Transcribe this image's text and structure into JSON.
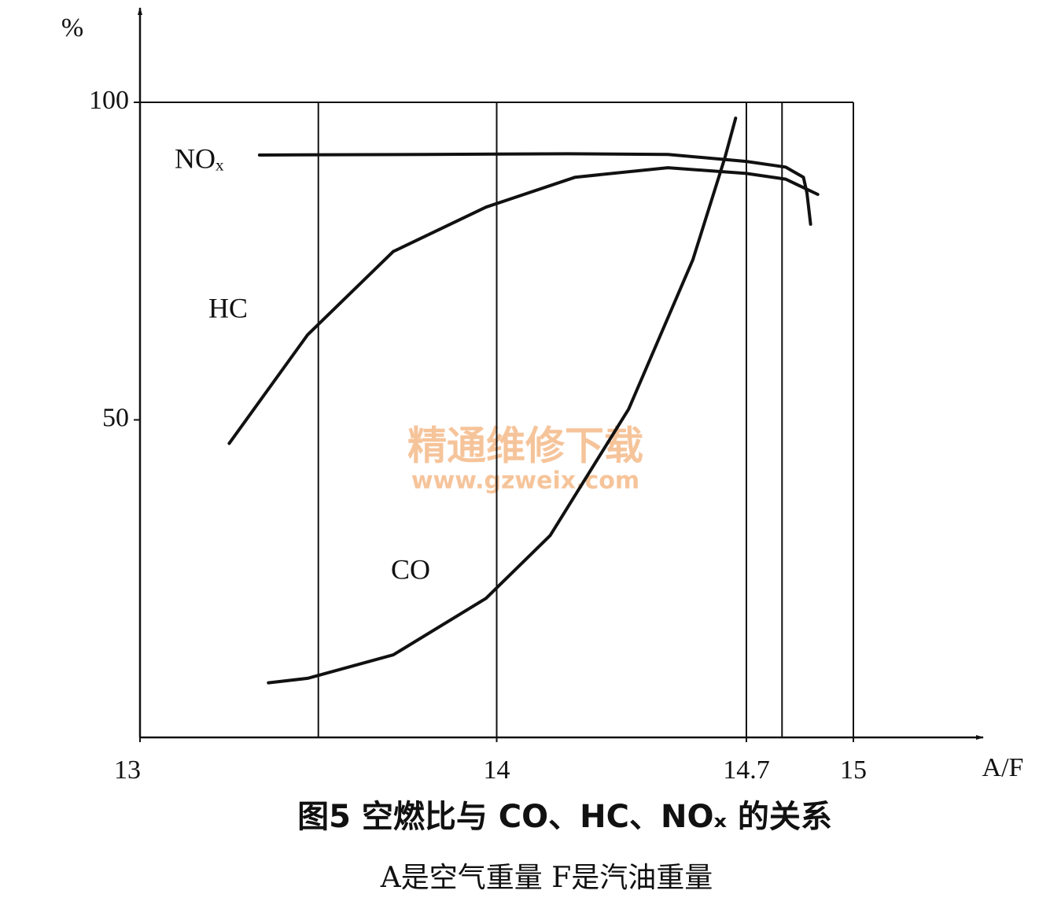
{
  "chart_data": {
    "type": "line",
    "title": "图5  空燃比与 CO、HC、NOₓ 的关系",
    "subtitle": "A是空气重量  F是汽油重量",
    "y_label": "%",
    "x_label": "A/F",
    "xlim": [
      13,
      15
    ],
    "ylim": [
      0,
      100
    ],
    "xticks": [
      13,
      14,
      14.7,
      15
    ],
    "yticks": [
      50,
      100
    ],
    "xgrid": [
      13.5,
      14,
      14.7,
      14.8,
      15
    ],
    "series": [
      {
        "name": "NOₓ",
        "color": "#111111",
        "x": [
          13.335,
          13.8,
          14.2,
          14.48,
          14.7,
          14.81,
          14.86,
          14.87,
          14.88
        ],
        "values": [
          91.7,
          91.8,
          91.9,
          91.8,
          90.7,
          89.8,
          88.2,
          85.7,
          80.8
        ]
      },
      {
        "name": "HC",
        "color": "#111111",
        "x": [
          13.25,
          13.47,
          13.71,
          13.97,
          14.22,
          14.48,
          14.7,
          14.81,
          14.9
        ],
        "values": [
          46.3,
          63.4,
          76.5,
          83.5,
          88.2,
          89.7,
          88.8,
          87.9,
          85.5
        ]
      },
      {
        "name": "CO",
        "color": "#111111",
        "x": [
          13.36,
          13.47,
          13.71,
          13.97,
          14.15,
          14.37,
          14.55,
          14.64,
          14.67
        ],
        "values": [
          8.6,
          9.3,
          13.0,
          21.9,
          31.8,
          51.7,
          75.2,
          91.3,
          97.5
        ]
      }
    ]
  },
  "watermark": {
    "title": "精通维修下载",
    "url": "www.gzweix.com"
  }
}
